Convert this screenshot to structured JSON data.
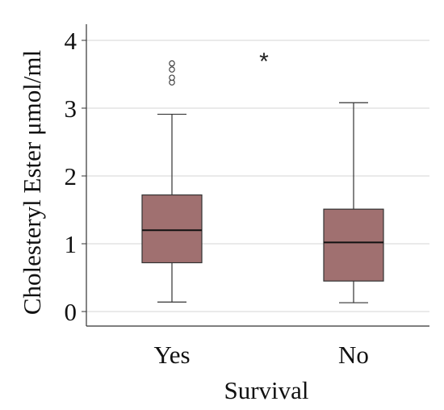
{
  "chart_data": {
    "type": "box",
    "xlabel": "Survival",
    "ylabel": "Cholesteryl Ester μmol/ml",
    "ylim": [
      0,
      4
    ],
    "yticks": [
      0,
      1,
      2,
      3,
      4
    ],
    "grid": true,
    "box_color": "#a07070",
    "annotation": "*",
    "groups": [
      {
        "name": "Yes",
        "whisker_low": 0.14,
        "q1": 0.72,
        "median": 1.2,
        "q3": 1.72,
        "whisker_high": 2.91,
        "outliers": [
          3.38,
          3.45,
          3.57,
          3.66
        ]
      },
      {
        "name": "No",
        "whisker_low": 0.13,
        "q1": 0.45,
        "median": 1.02,
        "q3": 1.51,
        "whisker_high": 3.08,
        "outliers": []
      }
    ]
  }
}
